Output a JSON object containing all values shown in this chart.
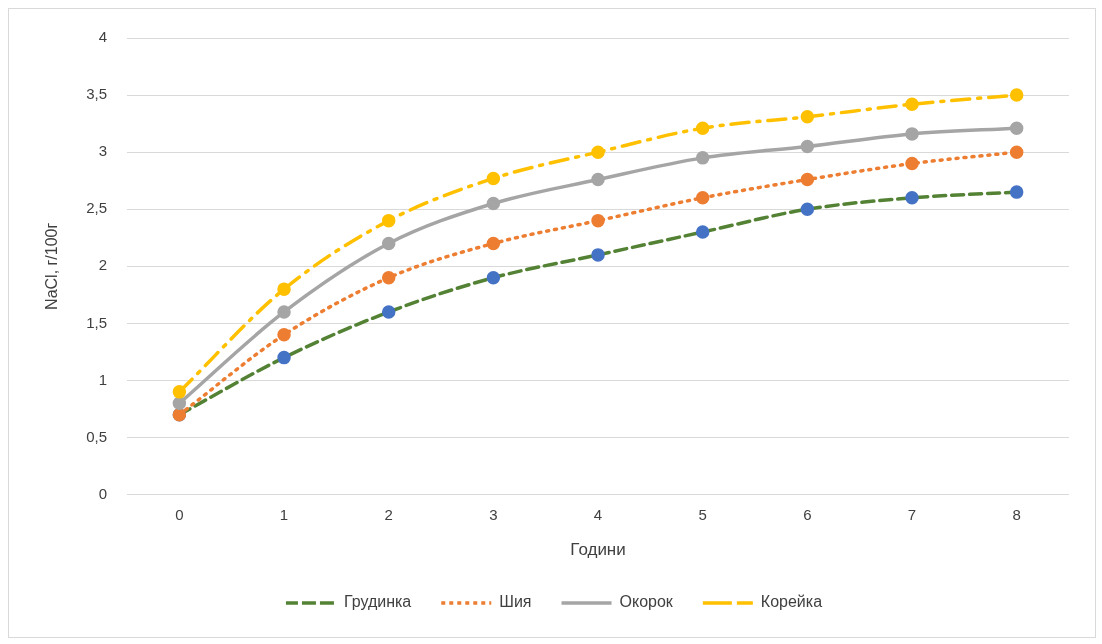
{
  "chart_data": {
    "type": "line",
    "xlabel": "Години",
    "ylabel": "NaCl, г/100г",
    "categories": [
      "0",
      "1",
      "2",
      "3",
      "4",
      "5",
      "6",
      "7",
      "8"
    ],
    "series": [
      {
        "name": "Грудинка",
        "color": "#548235",
        "colors": [
          "#4472c4",
          "#4472c4",
          "#4472c4",
          "#4472c4",
          "#4472c4",
          "#4472c4",
          "#4472c4",
          "#4472c4",
          "#4472c4"
        ],
        "line_style": "dashed",
        "values": [
          0.7,
          1.2,
          1.6,
          1.9,
          2.1,
          2.3,
          2.5,
          2.6,
          2.65
        ]
      },
      {
        "name": "Шия",
        "color": "#ed7d31",
        "line_style": "dotted",
        "values": [
          0.7,
          1.4,
          1.9,
          2.2,
          2.4,
          2.6,
          2.76,
          2.9,
          3.0
        ]
      },
      {
        "name": "Окорок",
        "color": "#a5a5a5",
        "line_style": "solid",
        "values": [
          0.8,
          1.6,
          2.2,
          2.55,
          2.76,
          2.95,
          3.05,
          3.16,
          3.21
        ]
      },
      {
        "name": "Корейка",
        "color": "#ffc000",
        "line_style": "dashdot",
        "values": [
          0.9,
          1.8,
          2.4,
          2.77,
          3.0,
          3.21,
          3.31,
          3.42,
          3.5
        ]
      }
    ],
    "ylim": [
      0,
      4
    ],
    "yticks": [
      0,
      {
        "value": 0.5,
        "label": "0,5"
      },
      1,
      {
        "value": 1.5,
        "label": "1,5"
      },
      2,
      {
        "value": 2.5,
        "label": "2,5"
      },
      3,
      {
        "value": 3.5,
        "label": "3,5"
      },
      4
    ],
    "grid": "y",
    "legend": "bottom",
    "marker": "circle"
  }
}
